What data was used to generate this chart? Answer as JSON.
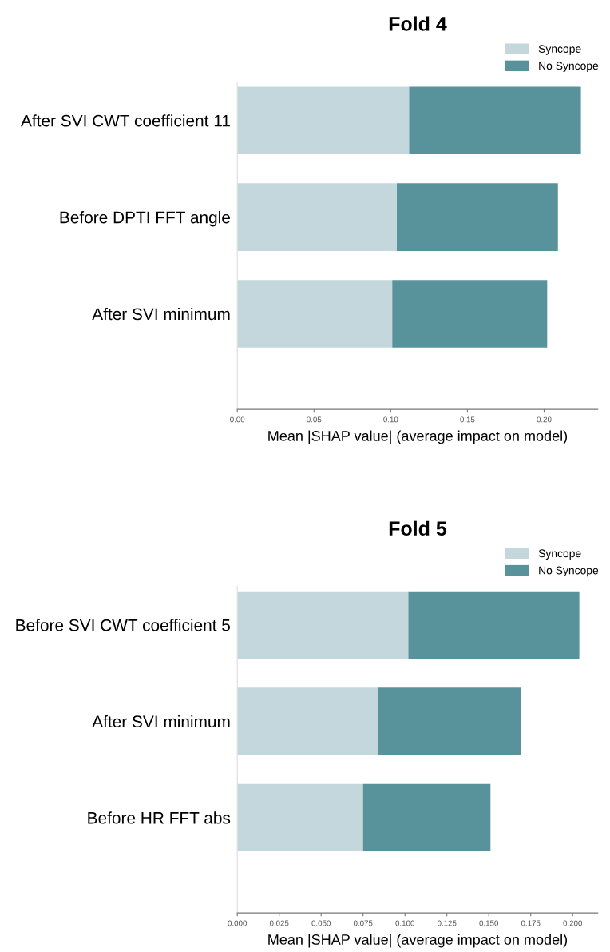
{
  "chart_data": [
    {
      "type": "bar",
      "orientation": "horizontal",
      "stacked": true,
      "title": "Fold 4",
      "xlabel": "Mean |SHAP value| (average impact on model)",
      "categories": [
        "After SVI CWT coefficient 11",
        "Before DPTI FFT angle",
        "After SVI minimum"
      ],
      "series": [
        {
          "name": "Syncope",
          "color": "#c3d7dc",
          "values": [
            0.112,
            0.104,
            0.101
          ]
        },
        {
          "name": "No Syncope",
          "color": "#58939b",
          "values": [
            0.112,
            0.105,
            0.101
          ]
        }
      ],
      "xlim": [
        0,
        0.235
      ],
      "xticks": [
        {
          "value": 0,
          "label": "0.00"
        },
        {
          "value": 0.05,
          "label": "0.05"
        },
        {
          "value": 0.1,
          "label": "0.10"
        },
        {
          "value": 0.15,
          "label": "0.15"
        },
        {
          "value": 0.2,
          "label": "0.20"
        }
      ],
      "grid": false,
      "legend": "top right"
    },
    {
      "type": "bar",
      "orientation": "horizontal",
      "stacked": true,
      "title": "Fold 5",
      "xlabel": "Mean |SHAP value| (average impact on model)",
      "categories": [
        "Before SVI CWT coefficient 5",
        "After SVI minimum",
        "Before HR FFT abs"
      ],
      "series": [
        {
          "name": "Syncope",
          "color": "#c3d7dc",
          "values": [
            0.102,
            0.084,
            0.075
          ]
        },
        {
          "name": "No Syncope",
          "color": "#58939b",
          "values": [
            0.102,
            0.085,
            0.076
          ]
        }
      ],
      "xlim": [
        0,
        0.215
      ],
      "xticks": [
        {
          "value": 0,
          "label": "0.000"
        },
        {
          "value": 0.025,
          "label": "0.025"
        },
        {
          "value": 0.05,
          "label": "0.050"
        },
        {
          "value": 0.075,
          "label": "0.075"
        },
        {
          "value": 0.1,
          "label": "0.100"
        },
        {
          "value": 0.125,
          "label": "0.125"
        },
        {
          "value": 0.15,
          "label": "0.150"
        },
        {
          "value": 0.175,
          "label": "0.175"
        },
        {
          "value": 0.2,
          "label": "0.200"
        }
      ],
      "grid": false,
      "legend": "top right"
    }
  ]
}
